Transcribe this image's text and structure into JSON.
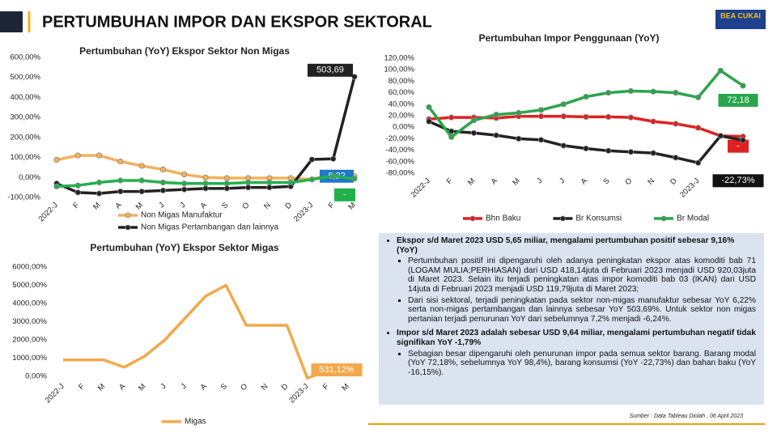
{
  "header": {
    "title": "PERTUMBUHAN IMPOR DAN EKSPOR SEKTORAL",
    "logo": "BEA CUKAI"
  },
  "chart_data": [
    {
      "type": "line",
      "title": "Pertumbuhan (YoY) Ekspor  Sektor Non Migas",
      "markers": true,
      "categories": [
        "2022-J",
        "F",
        "M",
        "A",
        "M",
        "J",
        "J",
        "A",
        "S",
        "O",
        "N",
        "D",
        "2023-J",
        "F",
        "M"
      ],
      "ylim": [
        -100,
        600
      ],
      "yticks": [
        {
          "value": -100,
          "label": "-100,00%"
        },
        {
          "value": 0,
          "label": "0,00%"
        },
        {
          "value": 100,
          "label": "100,00%"
        },
        {
          "value": 200,
          "label": "200,00%"
        },
        {
          "value": 300,
          "label": "300,00%"
        },
        {
          "value": 400,
          "label": "400,00%"
        },
        {
          "value": 500,
          "label": "500,00%"
        },
        {
          "value": 600,
          "label": "600,00%"
        }
      ],
      "series": [
        {
          "name": "Non Migas Manufaktur",
          "color": "#f4b15a",
          "label_color": "#1f78c8",
          "values": [
            88,
            110,
            110,
            80,
            58,
            40,
            15,
            0,
            -3,
            -3,
            -3,
            -3,
            -10,
            22,
            6.22
          ],
          "value_labels": [
            null,
            null,
            null,
            null,
            null,
            null,
            null,
            null,
            null,
            null,
            null,
            null,
            null,
            null,
            "6,22"
          ]
        },
        {
          "name": "Non Migas Pertambangan dan lainnya",
          "color": "#222222",
          "label_color": "#222222",
          "values": [
            -30,
            -75,
            -80,
            -70,
            -70,
            -65,
            -60,
            -55,
            -55,
            -50,
            -50,
            -45,
            90,
            93,
            503.69
          ],
          "value_labels": [
            null,
            null,
            null,
            null,
            null,
            null,
            null,
            null,
            null,
            null,
            null,
            null,
            null,
            null,
            "503,69"
          ]
        },
        {
          "color": "#22b04b",
          "label_color": "#22b04b",
          "values": [
            -45,
            -40,
            -25,
            -15,
            -15,
            -25,
            -30,
            -30,
            -30,
            -25,
            -25,
            -25,
            -10,
            7.2,
            -6.24
          ],
          "value_labels": [
            null,
            null,
            null,
            null,
            null,
            null,
            null,
            null,
            null,
            null,
            null,
            null,
            null,
            null,
            "-"
          ]
        }
      ]
    },
    {
      "type": "line",
      "title": "Pertumbuhan Impor Penggunaan (YoY)",
      "markers": true,
      "categories": [
        "2022-J",
        "F",
        "M",
        "A",
        "M",
        "J",
        "J",
        "A",
        "S",
        "O",
        "N",
        "D",
        "2023-J",
        "F",
        "M"
      ],
      "ylim": [
        -80,
        120
      ],
      "yticks": [
        {
          "value": -80,
          "label": "-80,00%"
        },
        {
          "value": -60,
          "label": "-60,00%"
        },
        {
          "value": -40,
          "label": "-40,00%"
        },
        {
          "value": -20,
          "label": "-20,00%"
        },
        {
          "value": 0,
          "label": "0,00%"
        },
        {
          "value": 20,
          "label": "20,00%"
        },
        {
          "value": 40,
          "label": "40,00%"
        },
        {
          "value": 60,
          "label": "60,00%"
        },
        {
          "value": 80,
          "label": "80,00%"
        },
        {
          "value": 100,
          "label": "100,00%"
        },
        {
          "value": 120,
          "label": "120,00%"
        }
      ],
      "series": [
        {
          "name": "Bhn Baku",
          "color": "#e02020",
          "label_color": "#e02020",
          "values": [
            14,
            17,
            17,
            16,
            19,
            19,
            19,
            18,
            18,
            17,
            10,
            6,
            -1,
            -15,
            -16.15
          ],
          "value_labels": [
            null,
            null,
            null,
            null,
            null,
            null,
            null,
            null,
            null,
            null,
            null,
            null,
            null,
            null,
            "-"
          ]
        },
        {
          "name": "Br Konsumsi",
          "color": "#222222",
          "label_color": "#111111",
          "values": [
            10,
            -7,
            -10,
            -14,
            -20,
            -22,
            -32,
            -37,
            -41,
            -43,
            -45,
            -53,
            -62,
            -15,
            -22.73
          ],
          "value_labels": [
            null,
            null,
            null,
            null,
            null,
            null,
            null,
            null,
            null,
            null,
            null,
            null,
            null,
            null,
            "-22,73%"
          ]
        },
        {
          "name": "Br Modal",
          "color": "#2aa54b",
          "label_color": "#2aa54b",
          "values": [
            35,
            -17,
            12,
            22,
            25,
            30,
            40,
            53,
            60,
            63,
            62,
            60,
            52,
            98.4,
            72.18
          ],
          "value_labels": [
            null,
            null,
            null,
            null,
            null,
            null,
            null,
            null,
            null,
            null,
            null,
            null,
            null,
            null,
            "72,18"
          ]
        }
      ]
    },
    {
      "type": "line",
      "title": "Pertumbuhan (YoY) Ekspor  Sektor Migas",
      "markers": false,
      "categories": [
        "2022-J",
        "F",
        "M",
        "A",
        "M",
        "J",
        "J",
        "A",
        "S",
        "O",
        "N",
        "D",
        "2023-J",
        "F",
        "M"
      ],
      "ylim": [
        -300,
        6500
      ],
      "yticks": [
        {
          "value": 0,
          "label": "0,00%"
        },
        {
          "value": 1000,
          "label": "1000,00%"
        },
        {
          "value": 2000,
          "label": "2000,00%"
        },
        {
          "value": 3000,
          "label": "3000,00%"
        },
        {
          "value": 4000,
          "label": "4000,00%"
        },
        {
          "value": 5000,
          "label": "5000,00%"
        },
        {
          "value": 6000,
          "label": "6000,00%"
        }
      ],
      "series": [
        {
          "name": "Migas",
          "color": "#f4a84a",
          "label_color": "#f4a84a",
          "values": [
            900,
            900,
            900,
            500,
            1100,
            2000,
            3200,
            4400,
            5000,
            2800,
            2800,
            2800,
            -100,
            300,
            531.12
          ],
          "value_labels": [
            null,
            null,
            null,
            null,
            null,
            null,
            null,
            null,
            null,
            null,
            null,
            null,
            null,
            null,
            "531,12%"
          ]
        }
      ]
    }
  ],
  "panel": {
    "items": [
      {
        "text": "Ekspor s/d Maret 2023 USD  5,65 miliar, mengalami pertumbuhan positif sebesar 9,16% (YoY)",
        "subs": [
          "Pertumbuhan positif ini dipengaruhi oleh adanya peningkatan ekspor atas komoditi bab 71 (LOGAM MULIA;PERHIASAN) dari USD 418,14juta di Februari 2023 menjadi USD 920,03juta di Maret 2023. Selain itu terjadi peningkatan atas impor komoditi bab 03 (IKAN) dari USD 14juta di Februari 2023 menjadi USD 119,79juta di Maret 2023;",
          "Dari sisi sektoral, terjadi peningkatan pada sektor non-migas manufaktur sebesar YoY 6,22% serta non-migas pertambangan dan lainnya sebesar YoY 503,69%. Untuk sektor non migas pertanian terjadi penurunan YoY dari sebelumnya 7,2% menjadi -6,24%."
        ]
      },
      {
        "text": "Impor s/d Maret 2023 adalah sebesar USD 9,64 miliar, mengalami pertumbuhan negatif tidak signifikan YoY -1,79%",
        "subs": [
          "Sebagian besar dipengaruhi oleh penurunan impor pada semua sektor barang. Barang modal (YoY 72,18%, sebelumnya YoY 98,4%), barang konsumsi (YoY -22,73%) dan bahan baku (YoY -16,15%)."
        ]
      }
    ]
  },
  "source": "Sumber  : Data Tableau  Diolah , 06 April 2023"
}
